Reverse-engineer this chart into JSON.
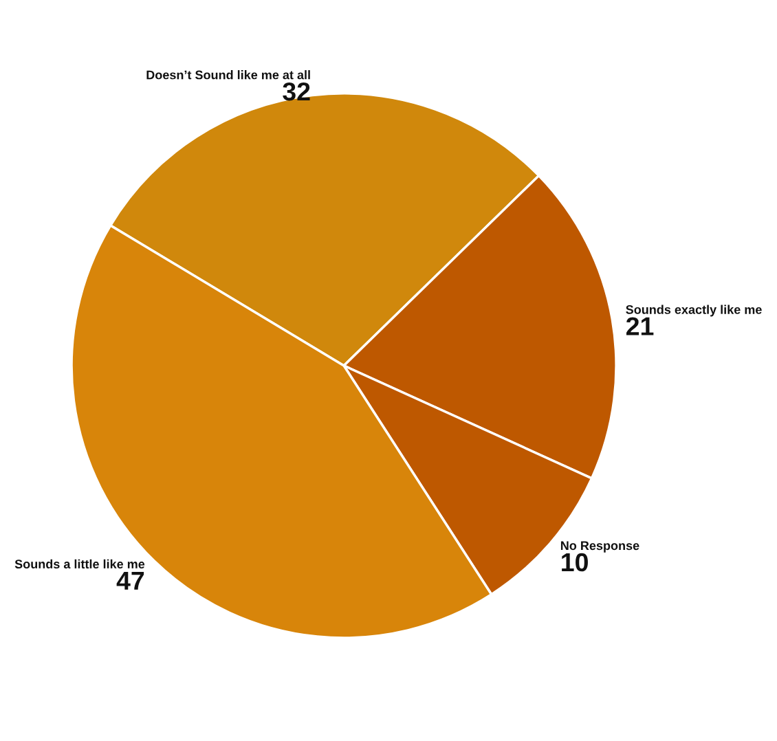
{
  "chart_data": {
    "type": "pie",
    "categories": [
      "Doesn’t Sound like me at all",
      "Sounds exactly like me",
      "No Response",
      "Sounds a little like me"
    ],
    "values": [
      32,
      21,
      10,
      47
    ],
    "colors": [
      "#d0880c",
      "#be5800",
      "#be5800",
      "#d8850a"
    ],
    "data_labels": true,
    "legend": false
  }
}
